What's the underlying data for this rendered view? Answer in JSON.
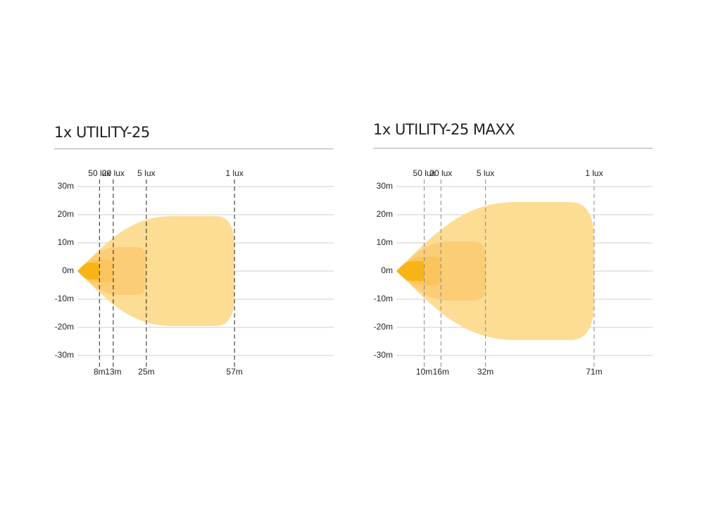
{
  "chart_data": [
    {
      "type": "beam",
      "title": "1x UTILITY-25",
      "ylim": [
        -30,
        30
      ],
      "xlim": [
        0,
        93
      ],
      "yticks": [
        {
          "value": 30,
          "label": "30m"
        },
        {
          "value": 20,
          "label": "20m"
        },
        {
          "value": 10,
          "label": "10m"
        },
        {
          "value": 0,
          "label": "0m"
        },
        {
          "value": -10,
          "label": "-10m"
        },
        {
          "value": -20,
          "label": "-20m"
        },
        {
          "value": -30,
          "label": "-30m"
        }
      ],
      "grid": true,
      "marker_color": "#222222",
      "zones": [
        {
          "name": "50 lux",
          "distance": 8,
          "distance_label": "8m",
          "half_width": 3,
          "color": "#f8b416"
        },
        {
          "name": "20 lux",
          "distance": 13,
          "distance_label": "13m",
          "half_width": 4,
          "color": "#fbc45c"
        },
        {
          "name": "5 lux",
          "distance": 25,
          "distance_label": "25m",
          "half_width": 8.5,
          "color": "#fccd77"
        },
        {
          "name": "1 lux",
          "distance": 57,
          "distance_label": "57m",
          "half_width": 19.5,
          "color": "#fddc94"
        }
      ]
    },
    {
      "type": "beam",
      "title": "1x UTILITY-25 MAXX",
      "ylim": [
        -30,
        30
      ],
      "xlim": [
        0,
        92
      ],
      "yticks": [
        {
          "value": 30,
          "label": "30m"
        },
        {
          "value": 20,
          "label": "20m"
        },
        {
          "value": 10,
          "label": "10m"
        },
        {
          "value": 0,
          "label": "0m"
        },
        {
          "value": -10,
          "label": "-10m"
        },
        {
          "value": -20,
          "label": "-20m"
        },
        {
          "value": -30,
          "label": "-30m"
        }
      ],
      "grid": true,
      "marker_color": "#888888",
      "zones": [
        {
          "name": "50 lux",
          "distance": 10,
          "distance_label": "10m",
          "half_width": 3.5,
          "color": "#f8b416"
        },
        {
          "name": "20 lux",
          "distance": 16,
          "distance_label": "16m",
          "half_width": 5,
          "color": "#fbc45c"
        },
        {
          "name": "5 lux",
          "distance": 32,
          "distance_label": "32m",
          "half_width": 10.5,
          "color": "#fccd77"
        },
        {
          "name": "1 lux",
          "distance": 71,
          "distance_label": "71m",
          "half_width": 24.5,
          "color": "#fddc94"
        }
      ]
    }
  ]
}
